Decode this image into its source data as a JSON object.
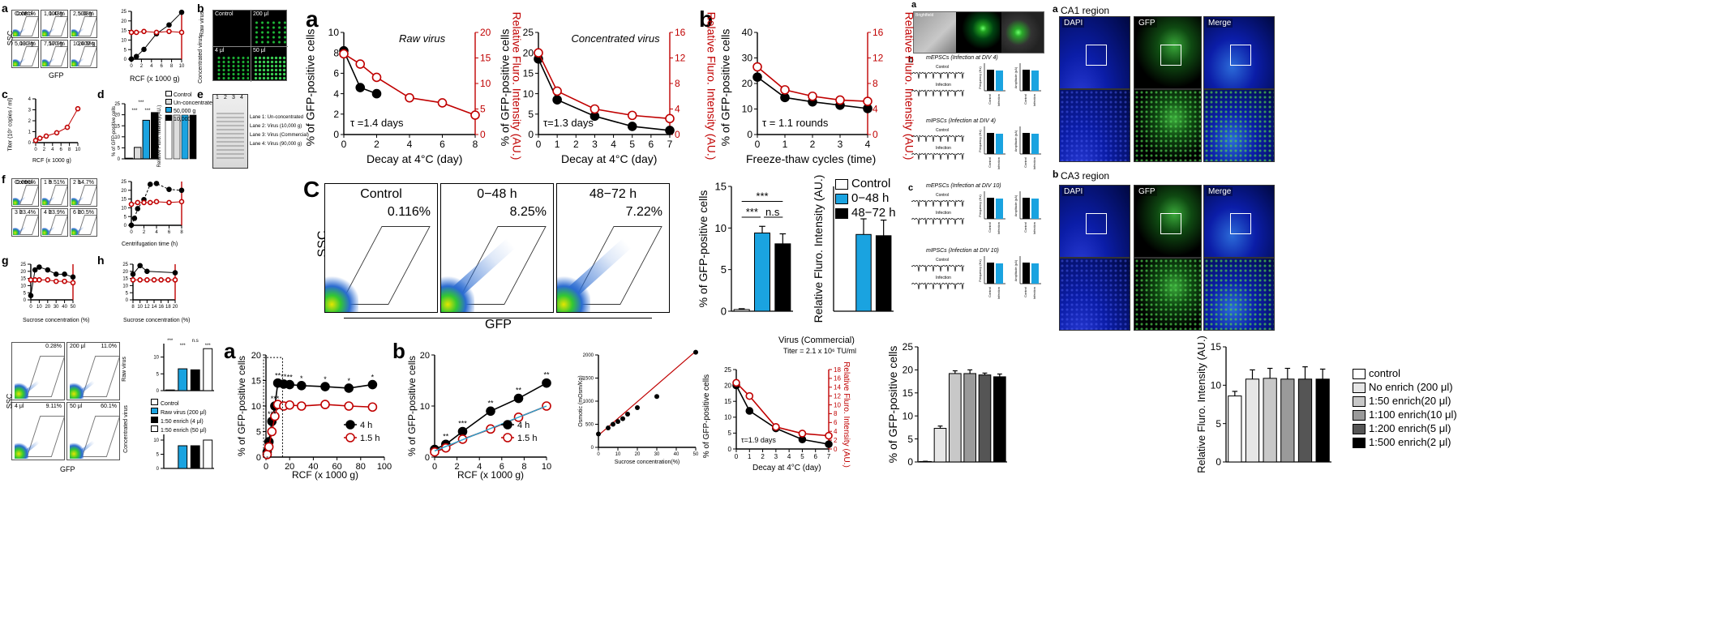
{
  "figure_a": {
    "panel_letter": "a",
    "chart_data": [
      {
        "type": "line",
        "title": "Raw virus",
        "xlabel": "Decay at 4°C (day)",
        "ylabel": "% of GFP-positive cells",
        "y2label": "Relative Fluro. Intensity (AU.)",
        "xlim": [
          0,
          8
        ],
        "ylim": [
          0,
          10
        ],
        "y2lim": [
          0,
          20
        ],
        "xticks": [
          0,
          2,
          4,
          6,
          8
        ],
        "yticks": [
          0,
          2,
          4,
          6,
          8,
          10
        ],
        "y2ticks": [
          0,
          5,
          10,
          15,
          20
        ],
        "series": [
          {
            "name": "GFP-positive",
            "x": [
              0,
              1,
              2
            ],
            "y": [
              8.2,
              4.6,
              4.0
            ]
          },
          {
            "name": "Fluro. intensity",
            "x": [
              0,
              1,
              2,
              4,
              6,
              8
            ],
            "y": [
              15.8,
              13.8,
              11.2,
              7.2,
              6.2,
              3.8
            ]
          }
        ],
        "annotation": "τ =1.4 days"
      },
      {
        "type": "line",
        "title": "Concentrated virus",
        "xlabel": "Decay at 4°C (day)",
        "ylabel": "% of GFP-positive cells",
        "y2label": "Relative Fluro. Intensity (AU.)",
        "xlim": [
          0,
          7
        ],
        "ylim": [
          0,
          25
        ],
        "y2lim": [
          0,
          16
        ],
        "xticks": [
          0,
          1,
          2,
          3,
          4,
          5,
          6,
          7
        ],
        "yticks": [
          0,
          5,
          10,
          15,
          20,
          25
        ],
        "y2ticks": [
          0,
          4,
          8,
          12,
          16
        ],
        "series": [
          {
            "name": "GFP-positive",
            "x": [
              0,
              1,
              3,
              5,
              7
            ],
            "y": [
              18.5,
              8.5,
              4.5,
              2.0,
              1.0
            ]
          },
          {
            "name": "Fluro. intensity",
            "x": [
              0,
              1,
              3,
              5,
              7
            ],
            "y": [
              12.8,
              6.8,
              4.0,
              3.0,
              2.5
            ]
          }
        ],
        "annotation": "τ=1.3 days"
      }
    ]
  },
  "figure_b": {
    "panel_letter": "b",
    "chart_data": {
      "type": "line",
      "xlabel": "Freeze-thaw cycles (time)",
      "ylabel": "% of GFP-positive cells",
      "y2label": "Relative Fluro. Intensity (AU.)",
      "xlim": [
        0,
        4
      ],
      "ylim": [
        0,
        40
      ],
      "y2lim": [
        0,
        16
      ],
      "xticks": [
        0,
        1,
        2,
        3,
        4
      ],
      "yticks": [
        0,
        10,
        20,
        30,
        40
      ],
      "y2ticks": [
        0,
        4,
        8,
        12,
        16
      ],
      "series": [
        {
          "name": "GFP-positive",
          "x": [
            0,
            1,
            2,
            3,
            4
          ],
          "y": [
            22.5,
            14.5,
            12.8,
            11.5,
            10.2
          ]
        },
        {
          "name": "Fluro. intensity",
          "x": [
            0,
            1,
            2,
            3,
            4
          ],
          "y": [
            10.6,
            7.0,
            6.0,
            5.4,
            5.2
          ]
        }
      ],
      "annotation": "τ = 1.1 rounds"
    }
  },
  "figure_c": {
    "panel_letter": "C",
    "facs": [
      {
        "title": "Control",
        "pct": "0.116%"
      },
      {
        "title": "0−48 h",
        "pct": "8.25%"
      },
      {
        "title": "48−72 h",
        "pct": "7.22%"
      }
    ],
    "ylabel": "SSC",
    "xlabel": "GFP",
    "bar_gfp": {
      "type": "bar",
      "ylabel": "% of GFP-positive cells",
      "ylim": [
        0,
        15
      ],
      "yticks": [
        0,
        5,
        10,
        15
      ],
      "categories": [
        "Control",
        "0−48 h",
        "48−72 h"
      ],
      "values": [
        0.2,
        9.4,
        8.1
      ],
      "errors": [
        0.1,
        0.8,
        1.2
      ],
      "sig": [
        "***",
        "***",
        "n.s"
      ]
    },
    "bar_intensity": {
      "type": "bar",
      "ylabel": "Relative Fluro. Intensity (AU.)",
      "categories": [
        "Control",
        "0−48 h",
        "48−72 h"
      ],
      "values": [
        0,
        12.3,
        12.1
      ],
      "errors": [
        0,
        2.5,
        2.5
      ],
      "ylim": [
        0,
        20
      ]
    },
    "legend": [
      "Control",
      "0−48 h",
      "48−72 h"
    ]
  },
  "colors": {
    "black_series": "#000000",
    "red_series": "#c00000",
    "blue_bar": "#1aa3e0",
    "light_gray": "#e8e8e8",
    "cyan_line": "#29a3cf"
  },
  "left_panels": {
    "a_label": "a",
    "b_label": "b",
    "c_label": "c",
    "d_label": "d",
    "e_label": "e",
    "f_label": "f",
    "g_label": "g",
    "h_label": "h",
    "facs_a": [
      {
        "name": "Control",
        "pct": "0.081%"
      },
      {
        "name": "1,000 g",
        "pct": "1.43%"
      },
      {
        "name": "2,500 g",
        "pct": "5.08%"
      },
      {
        "name": "5,000 g",
        "pct": "13.3%"
      },
      {
        "name": "7,500 g",
        "pct": "17.9%"
      },
      {
        "name": "10,000 g",
        "pct": "24.5%"
      }
    ],
    "facs_a_xlabel": "GFP",
    "facs_a_ylabel": "SSC",
    "chart_a": {
      "type": "line",
      "xlabel": "RCF (x 1000 g)",
      "ylabel": "% of GFP-positive cells",
      "xticks": [
        0,
        2,
        4,
        6,
        8,
        10
      ],
      "yticks": [
        0,
        5,
        10,
        15,
        20,
        25
      ],
      "series": [
        {
          "x": [
            0,
            1,
            2.5,
            5,
            7.5,
            10
          ],
          "y": [
            0.1,
            1.4,
            5.1,
            13.3,
            17.9,
            24.5
          ]
        },
        {
          "x": [
            0,
            1,
            2.5,
            5,
            7.5,
            10
          ],
          "y": [
            14,
            14,
            14.5,
            14,
            14.5,
            14
          ]
        }
      ]
    },
    "micro_b": {
      "tl": "Control",
      "tr": "200 μl",
      "side_top": "Raw virus",
      "side_bottom": "Concentrated virus",
      "br": "50 μl",
      "bl": "4 μl"
    },
    "chart_c": {
      "type": "line",
      "xlabel": "RCF (x 1000 g)",
      "ylabel": "Titer (10⁷ copies / ml)",
      "xticks": [
        0,
        2,
        4,
        6,
        8,
        10
      ],
      "yticks": [
        0,
        1,
        2,
        3,
        4
      ],
      "series": [
        {
          "x": [
            0,
            1,
            2.5,
            5,
            7.5,
            10
          ],
          "y": [
            0.2,
            0.4,
            0.6,
            0.9,
            1.4,
            3.1
          ]
        }
      ]
    },
    "chart_d": {
      "type": "bar",
      "ylabel": "% of GFP-positive cells",
      "y2label": "Relative Fluro. Intensity(AU.)",
      "legend": [
        "Control",
        "Un-concentrated",
        "50,000 g",
        "10,000 g"
      ],
      "values": [
        0.3,
        5.2,
        17.5,
        21.0
      ],
      "sig": [
        "***",
        "***",
        "***"
      ]
    },
    "gel_e": {
      "lanes": [
        "1",
        "2",
        "3",
        "4"
      ],
      "lane_labels": [
        "Lane 1: Un-concentrated",
        "Lane 2: Virus (10,000 g)",
        "Lane 3: Virus (Commercial)",
        "Lane 4: Virus (90,000 g)"
      ],
      "markers": [
        "170",
        "130",
        "100",
        "70",
        "55",
        "40",
        "35",
        "25",
        "15",
        "10"
      ]
    },
    "facs_f": [
      {
        "name": "Control",
        "pct": "0.096%"
      },
      {
        "name": "1 h",
        "pct": "9.51%"
      },
      {
        "name": "2 h",
        "pct": "14.7%"
      },
      {
        "name": "3 h",
        "pct": "23.4%"
      },
      {
        "name": "4 h",
        "pct": "23.9%"
      },
      {
        "name": "6 h",
        "pct": "20.5%"
      }
    ],
    "chart_f": {
      "type": "line",
      "xlabel": "Centrifugation time (h)",
      "xticks": [
        0,
        2,
        4,
        6,
        8
      ],
      "yticks": [
        0,
        5,
        10,
        15,
        20,
        25
      ],
      "series": [
        {
          "x": [
            0,
            0.5,
            1,
            2,
            3,
            4,
            6,
            8
          ],
          "y": [
            0.1,
            4,
            9.5,
            14.7,
            23.4,
            23.9,
            20.5,
            20
          ]
        },
        {
          "x": [
            0,
            1,
            2,
            3,
            4,
            6,
            8
          ],
          "y": [
            12,
            13,
            13,
            13,
            13.5,
            13,
            13.5
          ]
        }
      ]
    },
    "chart_g": {
      "type": "line",
      "xlabel": "Sucrose concentration (%)",
      "xticks": [
        0,
        10,
        20,
        30,
        40,
        50
      ],
      "yticks": [
        0,
        5,
        10,
        15,
        20,
        25
      ],
      "series": [
        {
          "x": [
            0,
            5,
            10,
            20,
            30,
            40,
            50
          ],
          "y": [
            3,
            21,
            23,
            21,
            18,
            18,
            16
          ]
        },
        {
          "x": [
            0,
            5,
            10,
            20,
            30,
            40,
            50
          ],
          "y": [
            14,
            14,
            14,
            14,
            13,
            13,
            12
          ]
        }
      ]
    },
    "chart_h": {
      "type": "line",
      "xlabel": "Sucrose concentration (%)",
      "xticks": [
        8,
        10,
        12,
        14,
        16,
        18,
        20
      ],
      "yticks": [
        0,
        5,
        10,
        15,
        20,
        25
      ],
      "series": [
        {
          "x": [
            8,
            10,
            12,
            20
          ],
          "y": [
            18,
            24,
            20,
            19
          ]
        },
        {
          "x": [
            8,
            10,
            12,
            14,
            16,
            18,
            20
          ],
          "y": [
            14,
            14,
            14,
            14,
            14,
            14,
            14
          ]
        }
      ]
    }
  },
  "bottom_left": {
    "facs": [
      {
        "name": "",
        "pct": "0.28%"
      },
      {
        "name": "200 μl",
        "pct": "11.0%"
      },
      {
        "name": "4 μl",
        "pct": "9.11%"
      },
      {
        "name": "50 μl",
        "pct": "60.1%"
      }
    ],
    "side_top": "Raw virus",
    "side_bottom": "Concentrated virus",
    "xlabel": "GFP",
    "ylabel": "SSC",
    "legend": [
      "Control",
      "Raw virus (200 μl)",
      "1:50 enrich (4 μl)",
      "1:50 enrich (50 μl)"
    ],
    "bar_top": {
      "values": [
        0.2,
        6.5,
        6.2,
        12.5
      ],
      "sig": [
        "***",
        "***",
        "n.s",
        "***"
      ]
    },
    "bar_bottom": {
      "values": [
        0,
        8,
        8,
        10
      ]
    }
  },
  "bottom_a": {
    "panel_letter": "a",
    "chart_data": {
      "type": "line",
      "xlabel": "RCF (x 1000 g)",
      "ylabel": "% of GFP-positive cells",
      "xlim": [
        0,
        100
      ],
      "ylim": [
        0,
        20
      ],
      "xticks": [
        0,
        20,
        40,
        60,
        80,
        100
      ],
      "yticks": [
        0,
        5,
        10,
        15,
        20
      ],
      "series": [
        {
          "name": "4 h",
          "x": [
            1,
            2.5,
            5,
            7.5,
            10,
            15,
            20,
            30,
            50,
            70,
            90
          ],
          "y": [
            1,
            3,
            7,
            10,
            14.5,
            14.3,
            14.2,
            14.0,
            13.8,
            13.5,
            14.2
          ]
        },
        {
          "name": "1.5 h",
          "x": [
            1,
            2.5,
            5,
            7.5,
            10,
            15,
            20,
            30,
            50,
            70,
            90
          ],
          "y": [
            0.5,
            2,
            5,
            8,
            10.3,
            10.0,
            10.2,
            10.0,
            10.3,
            10.0,
            9.8
          ]
        }
      ],
      "sig": [
        "***",
        "***",
        "**",
        "**",
        "**",
        "*",
        "*",
        "*",
        "*"
      ]
    }
  },
  "bottom_b": {
    "panel_letter": "b",
    "chart_data": {
      "type": "line",
      "xlabel": "RCF (x 1000 g)",
      "ylabel": "% of GFP-positive cells",
      "xlim": [
        0,
        10
      ],
      "ylim": [
        0,
        20
      ],
      "xticks": [
        0,
        2,
        4,
        6,
        8,
        10
      ],
      "yticks": [
        0,
        10,
        20
      ],
      "series": [
        {
          "name": "4 h",
          "x": [
            0,
            1,
            2.5,
            5,
            7.5,
            10
          ],
          "y": [
            1.5,
            2.5,
            5,
            9,
            11.5,
            14.5
          ]
        },
        {
          "name": "1.5 h",
          "x": [
            0,
            1,
            2.5,
            5,
            7.5,
            10
          ],
          "y": [
            1.0,
            1.8,
            3.5,
            5.5,
            7.8,
            10.0
          ]
        }
      ],
      "sig": [
        "**",
        "***",
        "**",
        "**",
        "**"
      ]
    }
  },
  "osmotic": {
    "chart_data": {
      "type": "scatter",
      "xlabel": "Sucrose concentration(%)",
      "ylabel": "Osmotic  (mOsm/Kg)",
      "xlim": [
        0,
        50
      ],
      "ylim": [
        0,
        2000
      ],
      "xticks": [
        0,
        10,
        20,
        30,
        40,
        50
      ],
      "yticks": [
        0,
        500,
        1000,
        1500,
        2000
      ],
      "x": [
        0,
        5,
        7.5,
        10,
        12.5,
        15,
        20,
        30,
        50
      ],
      "y": [
        290,
        420,
        500,
        560,
        620,
        720,
        860,
        1100,
        2060
      ]
    }
  },
  "commercial": {
    "chart_data": {
      "type": "line",
      "title": "Virus (Commercial)",
      "subtitle": "Titer = 2.1 x 10⁶ TU/ml",
      "xlabel": "Decay at 4°C (day)",
      "ylabel": "% of GFP-positive cells",
      "y2label": "Relative Fluro. Intensity (AU.)",
      "xlim": [
        0,
        7
      ],
      "ylim": [
        0,
        25
      ],
      "y2lim": [
        0,
        18
      ],
      "xticks": [
        0,
        1,
        2,
        3,
        4,
        5,
        6,
        7
      ],
      "yticks": [
        0,
        5,
        10,
        15,
        20,
        25
      ],
      "y2ticks": [
        0,
        2,
        4,
        6,
        8,
        10,
        12,
        14,
        16,
        18
      ],
      "series": [
        {
          "name": "GFP-positive",
          "x": [
            0,
            1,
            3,
            5,
            7
          ],
          "y": [
            20,
            12,
            6.5,
            3,
            1.5
          ]
        },
        {
          "name": "Fluro. intensity",
          "x": [
            0,
            1,
            3,
            5,
            7
          ],
          "y": [
            15,
            12,
            5,
            3.5,
            3
          ]
        }
      ],
      "annotation": "τ=1.9 days"
    }
  },
  "enrich_bar": {
    "chart_data": {
      "type": "bar",
      "ylabel": "% of GFP-positive cells",
      "ylim": [
        0,
        25
      ],
      "yticks": [
        0,
        5,
        10,
        15,
        20,
        25
      ],
      "categories": [
        "control",
        "No enrich (200 μl)",
        "1:50 enrich(20 μl)",
        "1:100 enrich(10 μl)",
        "1:200 enrich(5 μl)",
        "1:500 enrich(2 μl)"
      ],
      "values": [
        0.1,
        7.3,
        19.2,
        19.2,
        18.9,
        18.5
      ],
      "errors": [
        0.05,
        0.5,
        0.6,
        0.8,
        0.4,
        0.6
      ]
    }
  },
  "enrich_intensity": {
    "chart_data": {
      "type": "bar",
      "ylabel": "Relative Fluro. Intensity (AU.)",
      "ylim": [
        0,
        15
      ],
      "yticks": [
        0,
        5,
        10,
        15
      ],
      "categories": [
        "control",
        "No enrich (200 μl)",
        "1:50 enrich(20 μl)",
        "1:100 enrich(10 μl)",
        "1:200 enrich(5 μl)",
        "1:500 enrich(2 μl)"
      ],
      "values": [
        8.6,
        10.8,
        10.9,
        10.8,
        10.8,
        10.8
      ],
      "errors": [
        0.6,
        1.2,
        1.3,
        1.4,
        1.6,
        1.3
      ]
    },
    "legend": [
      "control",
      "No enrich (200 μl)",
      "1:50 enrich(20 μl)",
      "1:100 enrich(10 μl)",
      "1:200 enrich(5 μl)",
      "1:500 enrich(2 μl)"
    ],
    "legend_colors": [
      "#ffffff",
      "#e6e6e6",
      "#c8c8c8",
      "#9a9a9a",
      "#555555",
      "#000000"
    ]
  },
  "electrophys": {
    "a_label": "a",
    "b_label": "b",
    "c_label": "c",
    "brightfield": "Brightfield",
    "titles": [
      "mEPSCs (Infection at DIV 4)",
      "mIPSCs (Infection at DIV 4)",
      "mEPSCs (Infection at DIV 10)",
      "mIPSCs (Infection at DIV 10)"
    ],
    "trace_labels": [
      "Control",
      "Infection"
    ],
    "axis_freq": "Frequency (Hz)",
    "axis_amp": "Amplitude (pA)",
    "bar_cats": [
      "Control",
      "Infection"
    ]
  },
  "hippocampus": {
    "a_label": "a",
    "b_label": "b",
    "ca1": "CA1 region",
    "ca3": "CA3 region",
    "channels": [
      "DAPI",
      "GFP",
      "Merge"
    ]
  }
}
